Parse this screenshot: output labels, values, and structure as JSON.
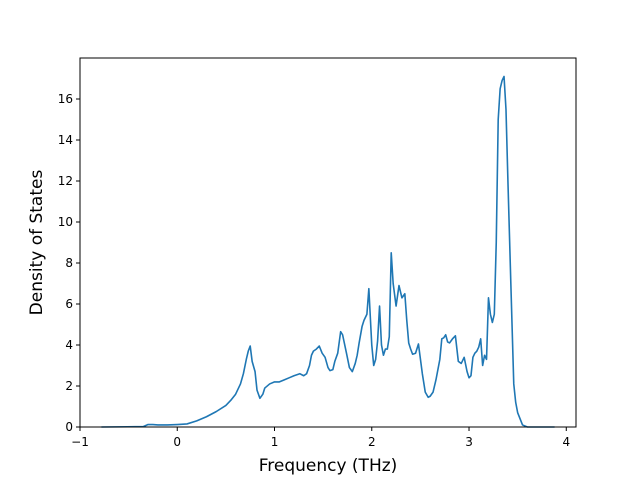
{
  "chart_data": {
    "type": "line",
    "title": "",
    "xlabel": "Frequency (THz)",
    "ylabel": "Density of States",
    "xlim": [
      -1.0,
      4.1
    ],
    "ylim": [
      0,
      18
    ],
    "xticks": [
      -1,
      0,
      1,
      2,
      3,
      4
    ],
    "yticks": [
      0,
      2,
      4,
      6,
      8,
      10,
      12,
      14,
      16
    ],
    "grid": false,
    "series": [
      {
        "color": "#1f77b4",
        "x": [
          -0.78,
          -0.35,
          -0.3,
          -0.25,
          -0.2,
          -0.1,
          0.0,
          0.1,
          0.2,
          0.3,
          0.4,
          0.5,
          0.55,
          0.6,
          0.65,
          0.68,
          0.71,
          0.73,
          0.75,
          0.77,
          0.8,
          0.82,
          0.85,
          0.88,
          0.9,
          0.95,
          1.0,
          1.05,
          1.1,
          1.15,
          1.2,
          1.23,
          1.26,
          1.3,
          1.33,
          1.36,
          1.38,
          1.4,
          1.43,
          1.46,
          1.49,
          1.52,
          1.55,
          1.57,
          1.6,
          1.62,
          1.65,
          1.68,
          1.7,
          1.74,
          1.77,
          1.8,
          1.83,
          1.85,
          1.87,
          1.9,
          1.92,
          1.95,
          1.97,
          2.0,
          2.02,
          2.04,
          2.06,
          2.08,
          2.1,
          2.12,
          2.14,
          2.16,
          2.18,
          2.2,
          2.22,
          2.25,
          2.28,
          2.31,
          2.34,
          2.36,
          2.38,
          2.4,
          2.42,
          2.45,
          2.48,
          2.52,
          2.55,
          2.58,
          2.6,
          2.63,
          2.66,
          2.7,
          2.72,
          2.74,
          2.76,
          2.78,
          2.8,
          2.83,
          2.86,
          2.89,
          2.92,
          2.95,
          2.98,
          3.0,
          3.02,
          3.04,
          3.06,
          3.08,
          3.1,
          3.12,
          3.14,
          3.16,
          3.18,
          3.2,
          3.22,
          3.24,
          3.26,
          3.28,
          3.3,
          3.32,
          3.34,
          3.36,
          3.38,
          3.4,
          3.43,
          3.46,
          3.48,
          3.5,
          3.55,
          3.6,
          3.7,
          3.8,
          3.88
        ],
        "y": [
          0.0,
          0.02,
          0.12,
          0.12,
          0.1,
          0.1,
          0.12,
          0.15,
          0.3,
          0.5,
          0.75,
          1.05,
          1.3,
          1.6,
          2.1,
          2.6,
          3.3,
          3.7,
          3.95,
          3.2,
          2.7,
          1.8,
          1.4,
          1.6,
          1.9,
          2.1,
          2.2,
          2.2,
          2.3,
          2.4,
          2.5,
          2.55,
          2.6,
          2.5,
          2.6,
          3.0,
          3.5,
          3.7,
          3.8,
          3.95,
          3.6,
          3.4,
          2.9,
          2.75,
          2.8,
          3.2,
          3.6,
          4.65,
          4.5,
          3.6,
          2.9,
          2.7,
          3.1,
          3.5,
          4.1,
          4.9,
          5.2,
          5.5,
          6.75,
          4.0,
          3.0,
          3.3,
          4.2,
          5.9,
          4.0,
          3.5,
          3.8,
          3.8,
          4.4,
          8.5,
          7.0,
          5.9,
          6.9,
          6.3,
          6.5,
          5.2,
          4.1,
          3.8,
          3.55,
          3.6,
          4.05,
          2.6,
          1.7,
          1.45,
          1.5,
          1.7,
          2.3,
          3.3,
          4.3,
          4.35,
          4.5,
          4.15,
          4.1,
          4.3,
          4.45,
          3.2,
          3.1,
          3.4,
          2.7,
          2.4,
          2.5,
          3.4,
          3.6,
          3.7,
          3.9,
          4.3,
          3.0,
          3.5,
          3.3,
          6.3,
          5.5,
          5.1,
          5.5,
          9.0,
          15.0,
          16.5,
          16.9,
          17.1,
          15.5,
          12.0,
          7.0,
          2.1,
          1.2,
          0.7,
          0.1,
          0.0,
          0.0,
          0.0,
          0.0
        ]
      }
    ]
  }
}
